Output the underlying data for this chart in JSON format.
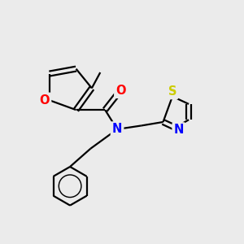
{
  "bg_color": "#ebebeb",
  "bond_color": "#000000",
  "bond_width": 1.6,
  "atom_colors": {
    "O": "#ff0000",
    "N": "#0000ff",
    "S": "#cccc00",
    "C": "#000000"
  },
  "font_size_atom": 10.5
}
